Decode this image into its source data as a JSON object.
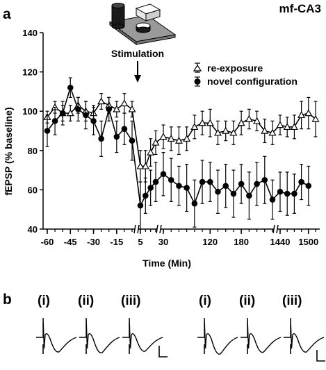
{
  "panel_a_label": "a",
  "panel_b_label": "b",
  "pathway_label": "mf-CA3",
  "stimulation_label": "Stimulation",
  "icon": "arena-with-objects-icon",
  "chart_data": {
    "type": "line",
    "xlabel": "Time (Min)",
    "ylabel": "fEPSP (% baseline)",
    "ylim": [
      40,
      140
    ],
    "y_ticks": [
      40,
      60,
      80,
      100,
      120,
      140
    ],
    "x_tick_labels": [
      "-60",
      "-45",
      "-30",
      "-15",
      "5",
      "30",
      "120",
      "180",
      "1440",
      "1500"
    ],
    "x_tick_values": [
      -60,
      -45,
      -30,
      -15,
      5,
      30,
      120,
      180,
      1440,
      1500
    ],
    "axis_breaks": [
      "between -5 and 0",
      "between 20 and 30",
      "between 240 and 1440"
    ],
    "stimulation_x": 0,
    "grid": false,
    "legend_position": "top-right",
    "series": [
      {
        "name": "re-exposure",
        "marker": "open-triangle",
        "points": [
          {
            "x": -60,
            "y": 97,
            "err": 3
          },
          {
            "x": -55,
            "y": 102,
            "err": 3
          },
          {
            "x": -50,
            "y": 99,
            "err": 4
          },
          {
            "x": -45,
            "y": 99,
            "err": 4
          },
          {
            "x": -40,
            "y": 103,
            "err": 4
          },
          {
            "x": -35,
            "y": 100,
            "err": 5
          },
          {
            "x": -30,
            "y": 99,
            "err": 4
          },
          {
            "x": -25,
            "y": 105,
            "err": 4
          },
          {
            "x": -20,
            "y": 103,
            "err": 4
          },
          {
            "x": -15,
            "y": 101,
            "err": 4
          },
          {
            "x": -10,
            "y": 104,
            "err": 5
          },
          {
            "x": -5,
            "y": 101,
            "err": 4
          },
          {
            "x": 5,
            "y": 72,
            "err": 8
          },
          {
            "x": 10,
            "y": 72,
            "err": 8
          },
          {
            "x": 15,
            "y": 79,
            "err": 7
          },
          {
            "x": 20,
            "y": 84,
            "err": 6
          },
          {
            "x": 30,
            "y": 87,
            "err": 6
          },
          {
            "x": 45,
            "y": 86,
            "err": 6
          },
          {
            "x": 60,
            "y": 85,
            "err": 7
          },
          {
            "x": 75,
            "y": 86,
            "err": 6
          },
          {
            "x": 90,
            "y": 92,
            "err": 6
          },
          {
            "x": 105,
            "y": 94,
            "err": 6
          },
          {
            "x": 120,
            "y": 94,
            "err": 7
          },
          {
            "x": 135,
            "y": 89,
            "err": 6
          },
          {
            "x": 150,
            "y": 90,
            "err": 5
          },
          {
            "x": 165,
            "y": 89,
            "err": 6
          },
          {
            "x": 180,
            "y": 94,
            "err": 6
          },
          {
            "x": 195,
            "y": 96,
            "err": 5
          },
          {
            "x": 210,
            "y": 95,
            "err": 5
          },
          {
            "x": 225,
            "y": 90,
            "err": 6
          },
          {
            "x": 240,
            "y": 89,
            "err": 6
          },
          {
            "x": 1440,
            "y": 93,
            "err": 5
          },
          {
            "x": 1455,
            "y": 92,
            "err": 5
          },
          {
            "x": 1470,
            "y": 92,
            "err": 6
          },
          {
            "x": 1485,
            "y": 98,
            "err": 7
          },
          {
            "x": 1500,
            "y": 99,
            "err": 8
          },
          {
            "x": 1515,
            "y": 96,
            "err": 9
          }
        ]
      },
      {
        "name": "novel configuration",
        "marker": "filled-circle",
        "points": [
          {
            "x": -60,
            "y": 90,
            "err": 8
          },
          {
            "x": -55,
            "y": 95,
            "err": 7
          },
          {
            "x": -50,
            "y": 99,
            "err": 6
          },
          {
            "x": -45,
            "y": 112,
            "err": 5
          },
          {
            "x": -40,
            "y": 101,
            "err": 6
          },
          {
            "x": -35,
            "y": 98,
            "err": 7
          },
          {
            "x": -30,
            "y": 95,
            "err": 7
          },
          {
            "x": -25,
            "y": 86,
            "err": 9
          },
          {
            "x": -20,
            "y": 101,
            "err": 6
          },
          {
            "x": -15,
            "y": 87,
            "err": 8
          },
          {
            "x": -10,
            "y": 91,
            "err": 8
          },
          {
            "x": -5,
            "y": 85,
            "err": 10
          },
          {
            "x": 5,
            "y": 52,
            "err": 12
          },
          {
            "x": 10,
            "y": 57,
            "err": 9
          },
          {
            "x": 15,
            "y": 61,
            "err": 9
          },
          {
            "x": 20,
            "y": 64,
            "err": 10
          },
          {
            "x": 30,
            "y": 68,
            "err": 11
          },
          {
            "x": 45,
            "y": 65,
            "err": 11
          },
          {
            "x": 60,
            "y": 62,
            "err": 10
          },
          {
            "x": 75,
            "y": 61,
            "err": 12
          },
          {
            "x": 90,
            "y": 53,
            "err": 12
          },
          {
            "x": 105,
            "y": 64,
            "err": 11
          },
          {
            "x": 120,
            "y": 64,
            "err": 10
          },
          {
            "x": 135,
            "y": 59,
            "err": 11
          },
          {
            "x": 150,
            "y": 62,
            "err": 11
          },
          {
            "x": 165,
            "y": 58,
            "err": 12
          },
          {
            "x": 180,
            "y": 63,
            "err": 10
          },
          {
            "x": 195,
            "y": 57,
            "err": 12
          },
          {
            "x": 210,
            "y": 63,
            "err": 11
          },
          {
            "x": 225,
            "y": 65,
            "err": 12
          },
          {
            "x": 240,
            "y": 55,
            "err": 10
          },
          {
            "x": 1440,
            "y": 59,
            "err": 10
          },
          {
            "x": 1455,
            "y": 58,
            "err": 11
          },
          {
            "x": 1470,
            "y": 58,
            "err": 10
          },
          {
            "x": 1485,
            "y": 64,
            "err": 9
          },
          {
            "x": 1500,
            "y": 62,
            "err": 10
          }
        ]
      }
    ]
  },
  "traces": {
    "groups": [
      {
        "name": "re-exposure",
        "items": [
          {
            "label": "(i)",
            "depth": 0.55
          },
          {
            "label": "(ii)",
            "depth": 0.62
          },
          {
            "label": "(iii)",
            "depth": 0.5
          }
        ],
        "has_scale_bar": true
      },
      {
        "name": "novel configuration",
        "items": [
          {
            "label": "(i)",
            "depth": 0.72
          },
          {
            "label": "(ii)",
            "depth": 0.58
          },
          {
            "label": "(iii)",
            "depth": 0.56
          }
        ],
        "has_scale_bar": true
      }
    ]
  }
}
